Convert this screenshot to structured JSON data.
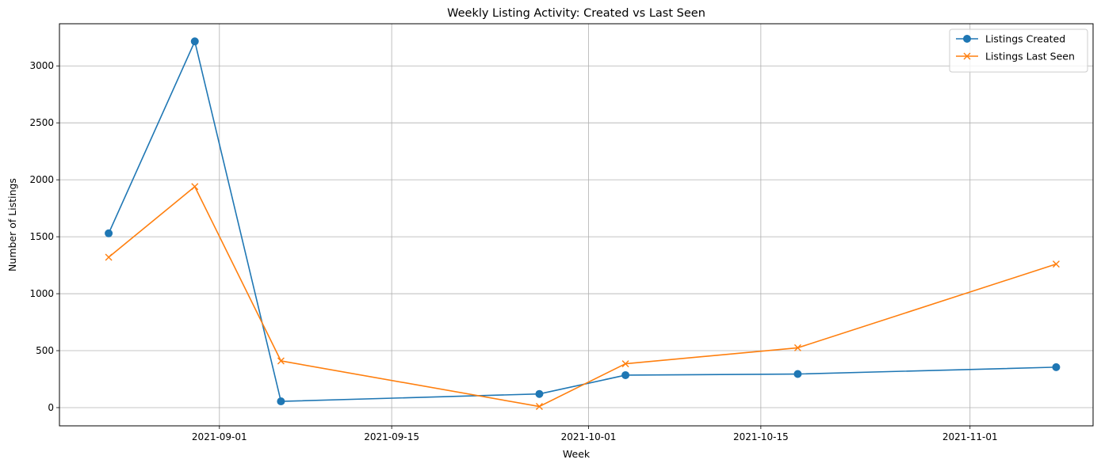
{
  "chart_data": {
    "type": "line",
    "title": "Weekly Listing Activity: Created vs Last Seen",
    "xlabel": "Week",
    "ylabel": "Number of Listings",
    "x": [
      "2021-08-23",
      "2021-08-30",
      "2021-09-06",
      "2021-09-27",
      "2021-10-04",
      "2021-10-18",
      "2021-11-08"
    ],
    "series": [
      {
        "name": "Listings Created",
        "color": "#1f77b4",
        "marker": "circle",
        "values": [
          1530,
          3215,
          55,
          120,
          285,
          295,
          355
        ]
      },
      {
        "name": "Listings Last Seen",
        "color": "#ff7f0e",
        "marker": "x",
        "values": [
          1320,
          1940,
          410,
          10,
          385,
          525,
          1260
        ]
      }
    ],
    "xlim": [
      "2021-08-19",
      "2021-11-11"
    ],
    "ylim": [
      -160,
      3370
    ],
    "yticks": [
      0,
      500,
      1000,
      1500,
      2000,
      2500,
      3000
    ],
    "xticks": [
      "2021-09-01",
      "2021-09-15",
      "2021-10-01",
      "2021-10-15",
      "2021-11-01"
    ],
    "grid": true,
    "legend_position": "top-right"
  }
}
